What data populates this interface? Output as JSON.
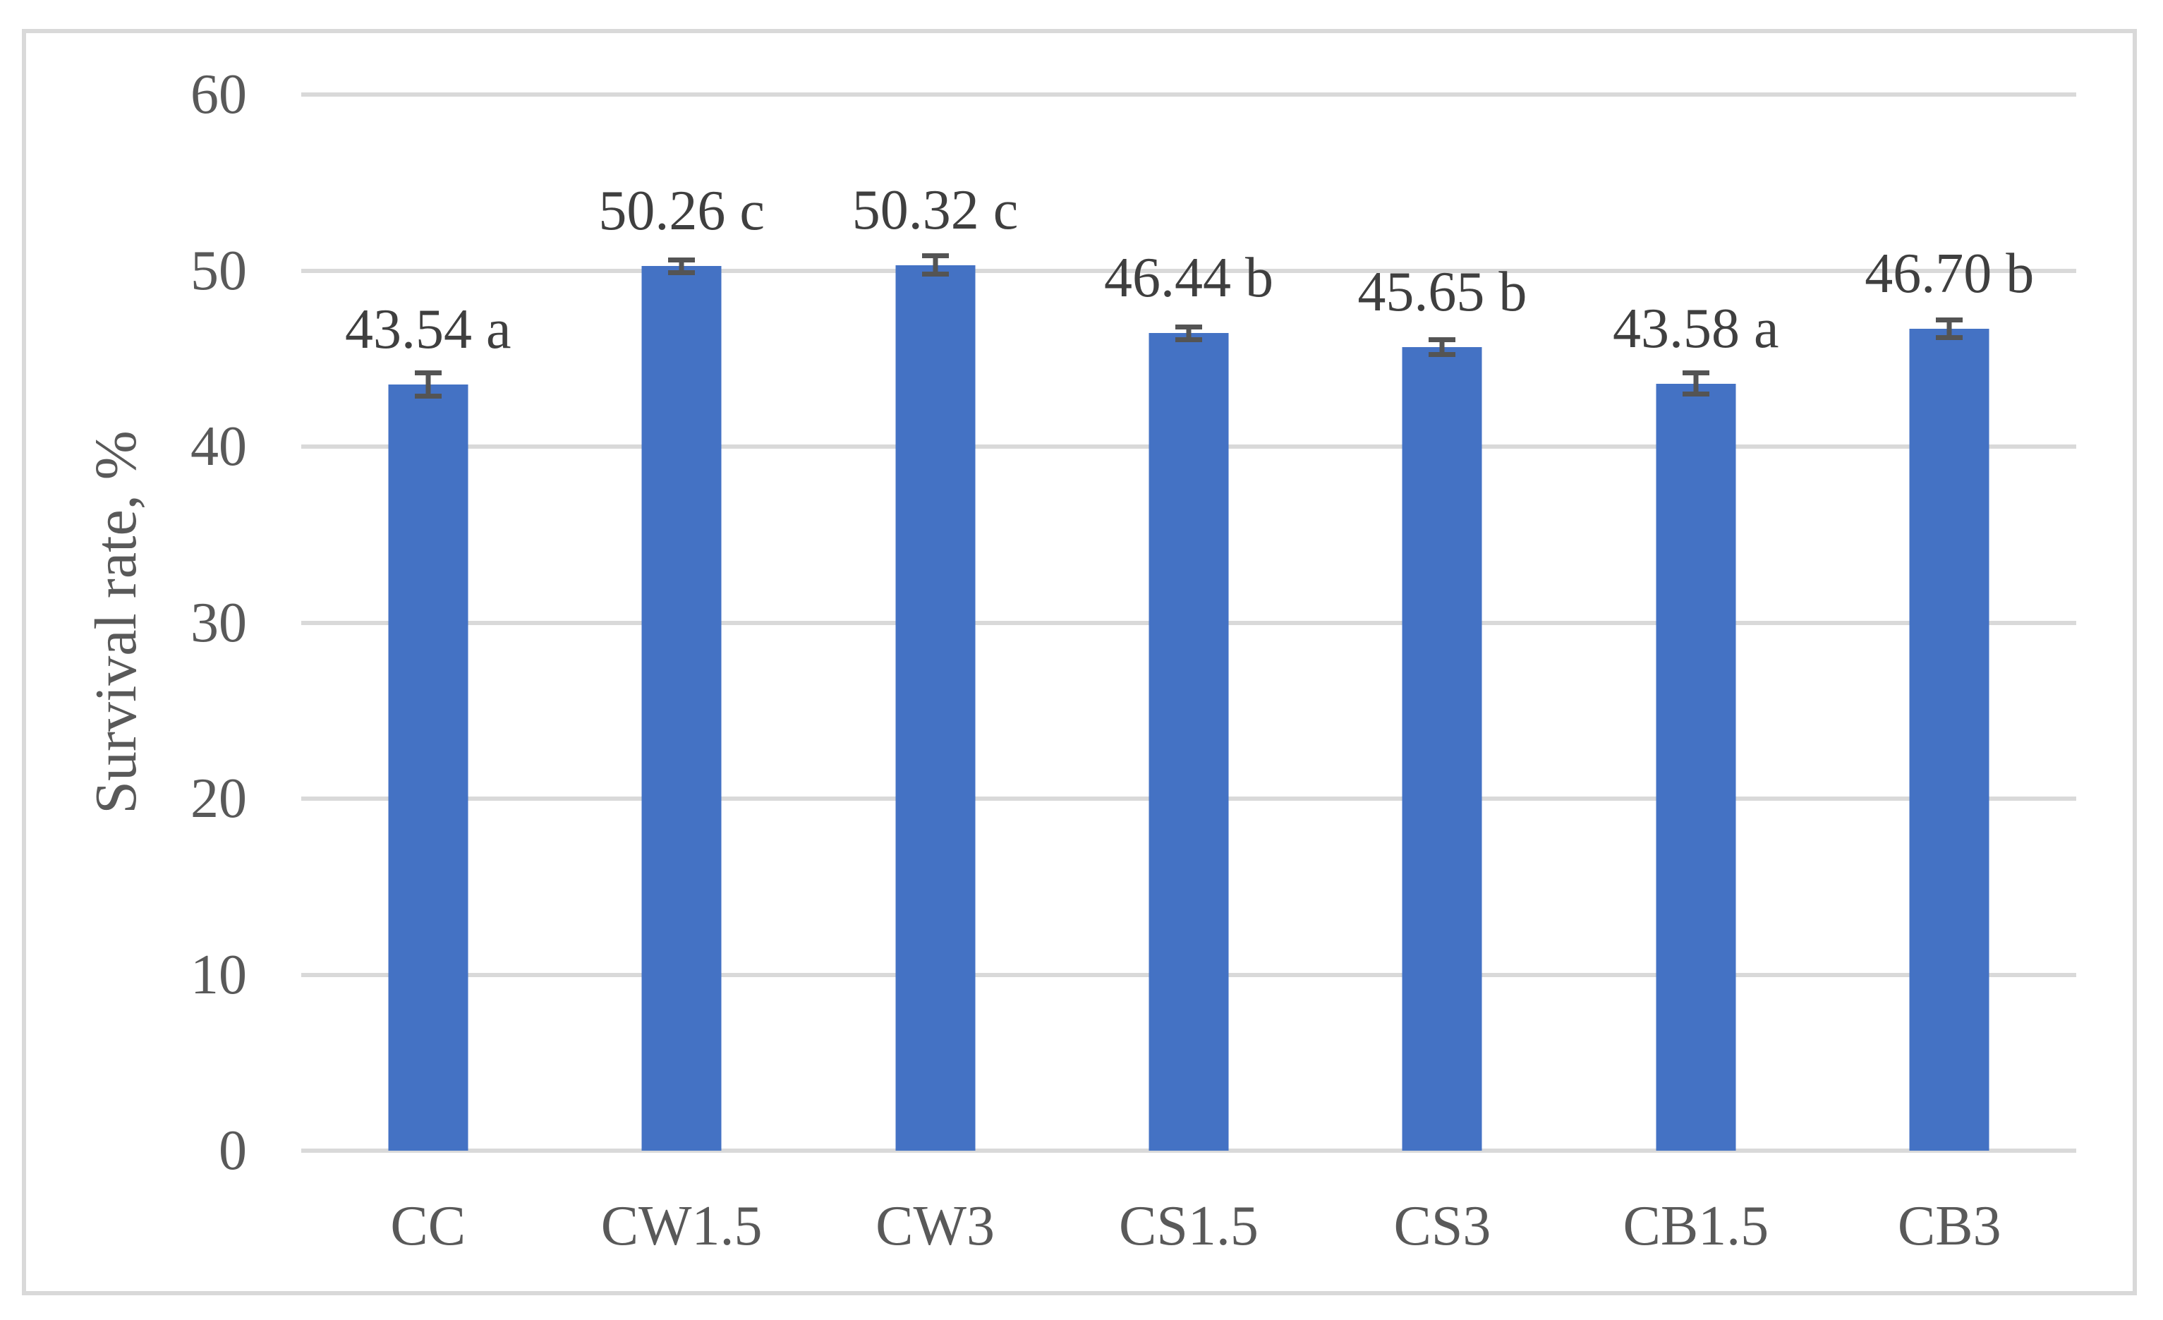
{
  "chart_data": {
    "type": "bar",
    "title": "",
    "categories": [
      "CC",
      "CW1.5",
      "CW3",
      "CS1.5",
      "CS3",
      "CB1.5",
      "CB3"
    ],
    "values": [
      43.54,
      50.26,
      50.32,
      46.44,
      45.65,
      43.58,
      46.7
    ],
    "data_labels": [
      "43.54 a",
      "50.26 c",
      "50.32 c",
      "46.44 b",
      "45.65 b",
      "43.58 a",
      "46.70 b"
    ],
    "errors": [
      0.8,
      0.5,
      0.65,
      0.5,
      0.55,
      0.75,
      0.65
    ],
    "xlabel": "",
    "ylabel": "Survival rate, %",
    "ylim": [
      0,
      60
    ],
    "yticks": [
      0,
      10,
      20,
      30,
      40,
      50,
      60
    ],
    "grid": true,
    "legend": "none",
    "bar_color": "#4472C4",
    "error_bar_color": "#545454",
    "gridline_color": "#D9D9D9",
    "axis_text_color": "#595959",
    "data_label_color": "#3F3F3F"
  }
}
